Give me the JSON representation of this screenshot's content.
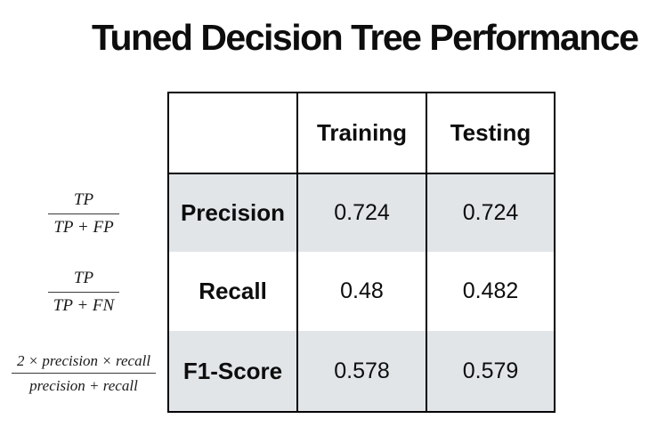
{
  "chart_data": {
    "type": "table",
    "title": "Tuned Decision Tree Performance",
    "columns": [
      "Training",
      "Testing"
    ],
    "rows": [
      "Precision",
      "Recall",
      "F1-Score"
    ],
    "values": [
      [
        "0.724",
        "0.724"
      ],
      [
        "0.48",
        "0.482"
      ],
      [
        "0.578",
        "0.579"
      ]
    ]
  },
  "formulas": [
    {
      "numerator": "TP",
      "denominator": "TP + FP"
    },
    {
      "numerator": "TP",
      "denominator": "TP + FN"
    },
    {
      "numerator": "2 × precision × recall",
      "denominator": "precision + recall"
    }
  ],
  "colors": {
    "row_shade": "#e2e5e8",
    "border": "#000000",
    "text": "#0d0d0d",
    "background": "#ffffff"
  }
}
